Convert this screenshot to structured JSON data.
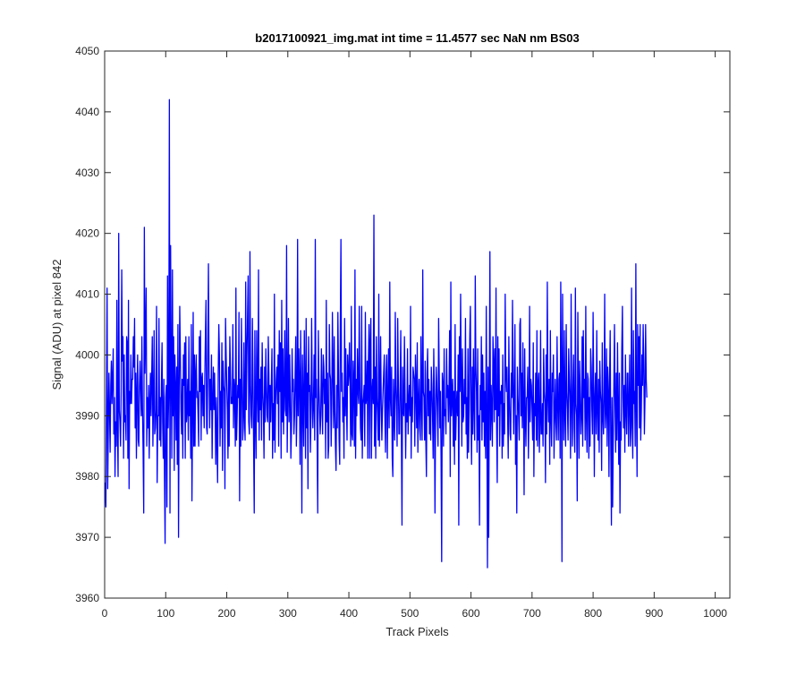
{
  "chart_data": {
    "type": "line",
    "title": "b2017100921_img.mat int time = 11.4577 sec  NaN nm BS03",
    "xlabel": "Track Pixels",
    "ylabel": "Signal (ADU) at pixel 842",
    "xlim": [
      0,
      1024
    ],
    "ylim": [
      3960,
      4050
    ],
    "xticks": [
      0,
      100,
      200,
      300,
      400,
      500,
      600,
      700,
      800,
      900,
      1000
    ],
    "yticks": [
      3960,
      3970,
      3980,
      3990,
      4000,
      4010,
      4020,
      4030,
      4040,
      4050
    ],
    "xtick_labels": [
      "0",
      "100",
      "200",
      "300",
      "400",
      "500",
      "600",
      "700",
      "800",
      "900",
      "1000"
    ],
    "ytick_labels": [
      "3960",
      "3970",
      "3980",
      "3990",
      "4000",
      "4010",
      "4020",
      "4030",
      "4040",
      "4050"
    ],
    "grid": false,
    "box": true,
    "line_color": "#0000ff",
    "series": [
      {
        "x_start": 1,
        "x_step": 1,
        "values": [
          3979,
          3975,
          3993,
          4011,
          3978,
          3988,
          3997,
          3991,
          3984,
          3995,
          3999,
          3992,
          3996,
          4001,
          3987,
          3993,
          3980,
          3989,
          3985,
          4009,
          3988,
          3980,
          4020,
          3991,
          3989,
          3985,
          3994,
          4014,
          3999,
          4003,
          3983,
          4000,
          3989,
          3990,
          3986,
          4003,
          4002,
          3983,
          4009,
          3978,
          3994,
          3992,
          4000,
          3992,
          3996,
          3996,
          4003,
          3998,
          4006,
          3988,
          3997,
          3983,
          3994,
          4000,
          3986,
          3985,
          3995,
          3999,
          3994,
          3990,
          4003,
          3991,
          3984,
          3974,
          4021,
          3997,
          4003,
          4011,
          3985,
          3993,
          3988,
          3995,
          3983,
          3992,
          3997,
          3990,
          3996,
          4003,
          3985,
          3992,
          4004,
          3987,
          3988,
          3991,
          4008,
          3979,
          3990,
          3990,
          4006,
          3986,
          3993,
          3985,
          3995,
          4002,
          3989,
          3983,
          3996,
          3980,
          3969,
          3993,
          3995,
          3975,
          4013,
          3988,
          3994,
          4042,
          3974,
          4018,
          3998,
          3983,
          4014,
          3990,
          4003,
          3981,
          4000,
          3995,
          3986,
          3998,
          3982,
          4005,
          3970,
          3994,
          4008,
          4000,
          3991,
          3987,
          3996,
          3983,
          4000,
          3995,
          4002,
          3983,
          4003,
          3989,
          3991,
          3996,
          3986,
          4003,
          3990,
          3994,
          3983,
          4005,
          3976,
          3990,
          4007,
          3985,
          4000,
          3985,
          3997,
          4000,
          3993,
          3994,
          3990,
          3985,
          4003,
          3994,
          4004,
          3986,
          3996,
          3997,
          3990,
          3995,
          3988,
          3996,
          4003,
          4009,
          3988,
          3987,
          4001,
          4015,
          3997,
          3988,
          3996,
          3991,
          4000,
          3983,
          3992,
          3998,
          3991,
          3997,
          3991,
          3982,
          3993,
          3986,
          3979,
          3997,
          4005,
          4000,
          3985,
          3994,
          3988,
          4002,
          3981,
          3999,
          3995,
          3994,
          3978,
          4006,
          4000,
          3995,
          3991,
          3983,
          3998,
          3985,
          4003,
          3998,
          3992,
          3993,
          3992,
          4005,
          3988,
          3996,
          3994,
          3985,
          4011,
          3986,
          3990,
          3995,
          3993,
          4007,
          3976,
          3996,
          3985,
          4006,
          3996,
          3986,
          3988,
          4002,
          3990,
          3986,
          4012,
          3991,
          4000,
          4006,
          4013,
          3989,
          3987,
          4017,
          3995,
          3990,
          3988,
          4006,
          3996,
          3985,
          3974,
          4004,
          3990,
          3983,
          4004,
          3995,
          3989,
          4014,
          3986,
          3996,
          3991,
          3998,
          3986,
          4002,
          3994,
          3991,
          3983,
          3998,
          3989,
          4001,
          3995,
          3990,
          3989,
          4003,
          3997,
          3986,
          3995,
          3989,
          3995,
          4001,
          3983,
          3992,
          3986,
          4010,
          3984,
          3992,
          3996,
          3998,
          3992,
          4000,
          3985,
          4004,
          3994,
          4002,
          3983,
          4009,
          3989,
          4001,
          3987,
          3994,
          4004,
          3991,
          3990,
          4018,
          3984,
          3994,
          4006,
          3989,
          4000,
          3993,
          3983,
          3988,
          4001,
          3994,
          3996,
          3987,
          3990,
          3997,
          4003,
          3985,
          3991,
          4019,
          3990,
          4001,
          3996,
          3982,
          4004,
          3993,
          3974,
          4000,
          3992,
          3985,
          4004,
          3995,
          3983,
          4006,
          3988,
          3997,
          3978,
          4003,
          3994,
          3995,
          3984,
          3990,
          4006,
          3994,
          3988,
          3992,
          4000,
          3986,
          4019,
          3993,
          3996,
          3986,
          3974,
          4004,
          3995,
          3991,
          3987,
          3990,
          4001,
          3993,
          3987,
          4000,
          3998,
          3992,
          3996,
          3983,
          4009,
          3989,
          3997,
          3983,
          3985,
          4005,
          3997,
          3996,
          3985,
          3992,
          4007,
          3997,
          3988,
          4003,
          3991,
          3985,
          3981,
          3995,
          3988,
          4007,
          3997,
          3986,
          3982,
          4005,
          4019,
          3994,
          3997,
          3989,
          3993,
          3983,
          4006,
          3990,
          4001,
          3992,
          3986,
          4000,
          3995,
          3997,
          4002,
          3994,
          3985,
          4008,
          3987,
          3986,
          3999,
          3995,
          3985,
          4014,
          3983,
          3996,
          3990,
          4001,
          3994,
          3992,
          4008,
          3995,
          3988,
          3986,
          4008,
          3983,
          3992,
          3993,
          3995,
          3985,
          4007,
          3992,
          3993,
          3999,
          3983,
          3999,
          4005,
          3983,
          4002,
          4006,
          3983,
          3994,
          3996,
          3992,
          4023,
          3985,
          3998,
          3983,
          4003,
          3993,
          3990,
          3986,
          4010,
          3985,
          3993,
          4003,
          3992,
          3986,
          3991,
          3994,
          3997,
          4000,
          3990,
          3984,
          3997,
          4000,
          3983,
          3993,
          4001,
          3988,
          4012,
          3993,
          3990,
          3998,
          3983,
          3980,
          3996,
          3990,
          3986,
          4007,
          3995,
          3991,
          3985,
          4006,
          3996,
          3987,
          3987,
          3995,
          4004,
          3987,
          3972,
          3998,
          3991,
          3990,
          4003,
          3994,
          3983,
          3992,
          3989,
          4001,
          3987,
          3992,
          3995,
          3990,
          4008,
          3983,
          3993,
          3989,
          3998,
          3997,
          3996,
          3985,
          4000,
          3995,
          3988,
          4002,
          3984,
          3992,
          3996,
          3988,
          3986,
          4003,
          3992,
          3986,
          4014,
          3994,
          3993,
          3986,
          3999,
          3986,
          3980,
          3997,
          4001,
          3990,
          3996,
          3987,
          3994,
          3986,
          3998,
          3995,
          3990,
          3983,
          4001,
          3993,
          3974,
          3990,
          3998,
          3995,
          3990,
          3985,
          4006,
          3997,
          3988,
          3994,
          3983,
          3966,
          3997,
          3995,
          3985,
          4001,
          3990,
          3991,
          3987,
          4001,
          3993,
          3995,
          3989,
          3994,
          4004,
          3980,
          4012,
          3990,
          3993,
          3996,
          3985,
          3994,
          3982,
          4005,
          3986,
          3991,
          3994,
          3990,
          4000,
          3972,
          4003,
          3994,
          4010,
          3996,
          3985,
          4001,
          3989,
          3990,
          3996,
          3992,
          4006,
          3987,
          3993,
          3983,
          4001,
          3984,
          3991,
          4003,
          4008,
          3990,
          3982,
          3998,
          3987,
          4001,
          3992,
          3986,
          4013,
          3998,
          3994,
          3984,
          4001,
          3986,
          3990,
          3972,
          3995,
          3991,
          4003,
          3986,
          4000,
          3989,
          3997,
          3985,
          3994,
          3983,
          4008,
          3990,
          3965,
          3998,
          3970,
          3993,
          4017,
          3986,
          3995,
          3991,
          3985,
          4003,
          3999,
          3989,
          4001,
          3991,
          4011,
          3988,
          3979,
          4003,
          3990,
          4001,
          3985,
          3994,
          3992,
          3995,
          3983,
          4000,
          3985,
          3992,
          3987,
          4010,
          3997,
          3994,
          3998,
          3990,
          3983,
          4003,
          3993,
          3987,
          3986,
          3997,
          3993,
          4009,
          3994,
          3987,
          3996,
          4005,
          3982,
          3990,
          3974,
          3998,
          3993,
          3990,
          3986,
          4005,
          4006,
          3990,
          3997,
          3988,
          4002,
          3992,
          3977,
          4001,
          3990,
          3985,
          3993,
          3993,
          3998,
          3983,
          3991,
          4008,
          3989,
          3996,
          3995,
          3991,
          3986,
          4002,
          3980,
          3992,
          3990,
          3997,
          3986,
          4004,
          3985,
          3995,
          3997,
          3984,
          3989,
          4004,
          3987,
          3987,
          3992,
          3985,
          4001,
          3994,
          3992,
          3979,
          4000,
          3987,
          4012,
          3993,
          3989,
          3996,
          3982,
          4004,
          3990,
          3985,
          3997,
          3994,
          4000,
          3983,
          3990,
          3996,
          3989,
          3986,
          4003,
          3992,
          3986,
          3996,
          3997,
          3983,
          4012,
          3997,
          3966,
          4010,
          3994,
          3986,
          4004,
          3990,
          3985,
          4005,
          3994,
          3991,
          3986,
          4001,
          3996,
          3992,
          3983,
          4010,
          3992,
          3985,
          3995,
          4000,
          3988,
          3984,
          4011,
          3992,
          3990,
          3976,
          4007,
          3994,
          3983,
          3999,
          3993,
          3987,
          3990,
          4003,
          3985,
          4004,
          3993,
          3996,
          3986,
          4008,
          3990,
          3984,
          3997,
          3996,
          3983,
          3993,
          3985,
          4001,
          3998,
          3991,
          3987,
          4007,
          3995,
          3980,
          3993,
          3997,
          3987,
          4004,
          3991,
          3986,
          3996,
          3984,
          3999,
          3994,
          3992,
          3981,
          4002,
          3990,
          3987,
          3993,
          4010,
          3988,
          3991,
          4001,
          3985,
          3998,
          3994,
          3980,
          3996,
          4004,
          3985,
          3972,
          3993,
          3975,
          3986,
          3995,
          4005,
          3992,
          3984,
          3997,
          3986,
          4002,
          3991,
          3982,
          3997,
          3974,
          3989,
          3986,
          4001,
          4008,
          3993,
          3988,
          3995,
          3984,
          4000,
          3991,
          3987,
          3997,
          3997,
          3985,
          3992,
          4000,
          3985,
          3988,
          4011,
          3989,
          3983,
          4004,
          3992,
          3994,
          3985,
          4015,
          3992,
          3980,
          4005,
          3995,
          4003,
          3988,
          4005,
          3986,
          3991,
          4000,
          3995,
          4005,
          3999,
          3987,
          3993,
          4005,
          3996,
          3993
        ]
      }
    ]
  }
}
